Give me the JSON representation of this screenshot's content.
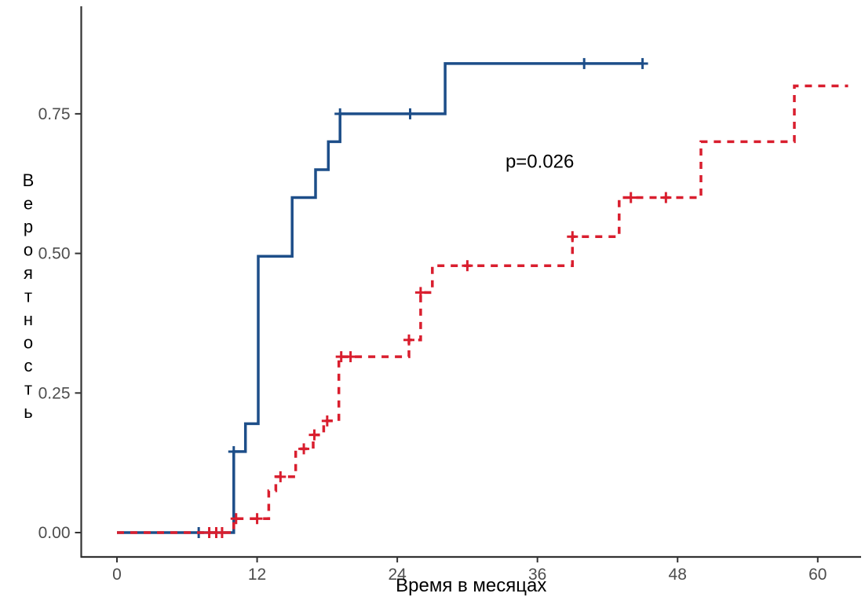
{
  "chart_data": {
    "type": "line",
    "subtype": "kaplan-meier-step-cumulative-incidence",
    "title": "",
    "xlabel": "Время в месяцах",
    "ylabel": "Вероятность",
    "xlim": [
      0,
      63
    ],
    "ylim": [
      0,
      0.9
    ],
    "x_ticks": [
      0,
      12,
      24,
      36,
      48,
      60
    ],
    "y_tick_labels": [
      "0.00",
      "0.25",
      "0.50",
      "0.75"
    ],
    "y_tick_values": [
      0,
      0.25,
      0.5,
      0.75
    ],
    "grid": false,
    "legend_position": "none",
    "annotation": {
      "text": "p=0.026",
      "x_month": 36.2,
      "y_prob": 0.665
    },
    "series": [
      {
        "name": "group-1-solid-blue",
        "color": "#1d4e89",
        "dash": "solid",
        "points": [
          [
            0,
            0
          ],
          [
            10,
            0
          ],
          [
            10,
            0.145
          ],
          [
            11,
            0.145
          ],
          [
            11,
            0.195
          ],
          [
            12.1,
            0.195
          ],
          [
            12.1,
            0.495
          ],
          [
            15,
            0.495
          ],
          [
            15,
            0.6
          ],
          [
            17,
            0.6
          ],
          [
            17,
            0.65
          ],
          [
            18.1,
            0.65
          ],
          [
            18.1,
            0.7
          ],
          [
            19.1,
            0.7
          ],
          [
            19.1,
            0.75
          ],
          [
            28.1,
            0.75
          ],
          [
            28.1,
            0.84
          ],
          [
            45,
            0.84
          ]
        ],
        "censors": [
          [
            7,
            0
          ],
          [
            10,
            0.145
          ],
          [
            19.1,
            0.75
          ],
          [
            25.1,
            0.75
          ],
          [
            40,
            0.84
          ],
          [
            45,
            0.84
          ]
        ]
      },
      {
        "name": "group-2-dashed-red",
        "color": "#d91e2e",
        "dash": "dashed",
        "points": [
          [
            0,
            0
          ],
          [
            10,
            0
          ],
          [
            10,
            0.025
          ],
          [
            13,
            0.025
          ],
          [
            13,
            0.075
          ],
          [
            13.6,
            0.075
          ],
          [
            13.6,
            0.1
          ],
          [
            15.3,
            0.1
          ],
          [
            15.3,
            0.15
          ],
          [
            16.8,
            0.15
          ],
          [
            16.8,
            0.175
          ],
          [
            17.7,
            0.175
          ],
          [
            17.7,
            0.2
          ],
          [
            19,
            0.2
          ],
          [
            19,
            0.315
          ],
          [
            25,
            0.315
          ],
          [
            25,
            0.345
          ],
          [
            26,
            0.345
          ],
          [
            26,
            0.43
          ],
          [
            27,
            0.43
          ],
          [
            27,
            0.478
          ],
          [
            39,
            0.478
          ],
          [
            39,
            0.53
          ],
          [
            43,
            0.53
          ],
          [
            43,
            0.6
          ],
          [
            50,
            0.6
          ],
          [
            50,
            0.7
          ],
          [
            58,
            0.7
          ],
          [
            58,
            0.8
          ],
          [
            62.6,
            0.8
          ]
        ],
        "censors": [
          [
            7.9,
            0
          ],
          [
            8.5,
            0
          ],
          [
            9,
            0
          ],
          [
            10.2,
            0.025
          ],
          [
            12,
            0.025
          ],
          [
            14,
            0.1
          ],
          [
            16,
            0.15
          ],
          [
            16.9,
            0.175
          ],
          [
            18,
            0.2
          ],
          [
            19.2,
            0.315
          ],
          [
            20,
            0.315
          ],
          [
            25,
            0.345
          ],
          [
            26,
            0.43
          ],
          [
            30,
            0.478
          ],
          [
            39,
            0.53
          ],
          [
            44,
            0.6
          ],
          [
            47,
            0.6
          ]
        ]
      }
    ],
    "colors": {
      "axis": "#333333",
      "tick_labels": "#4d4d4d",
      "axis_titles": "#000000",
      "annotation_text": "#000000",
      "background": "#ffffff"
    }
  }
}
